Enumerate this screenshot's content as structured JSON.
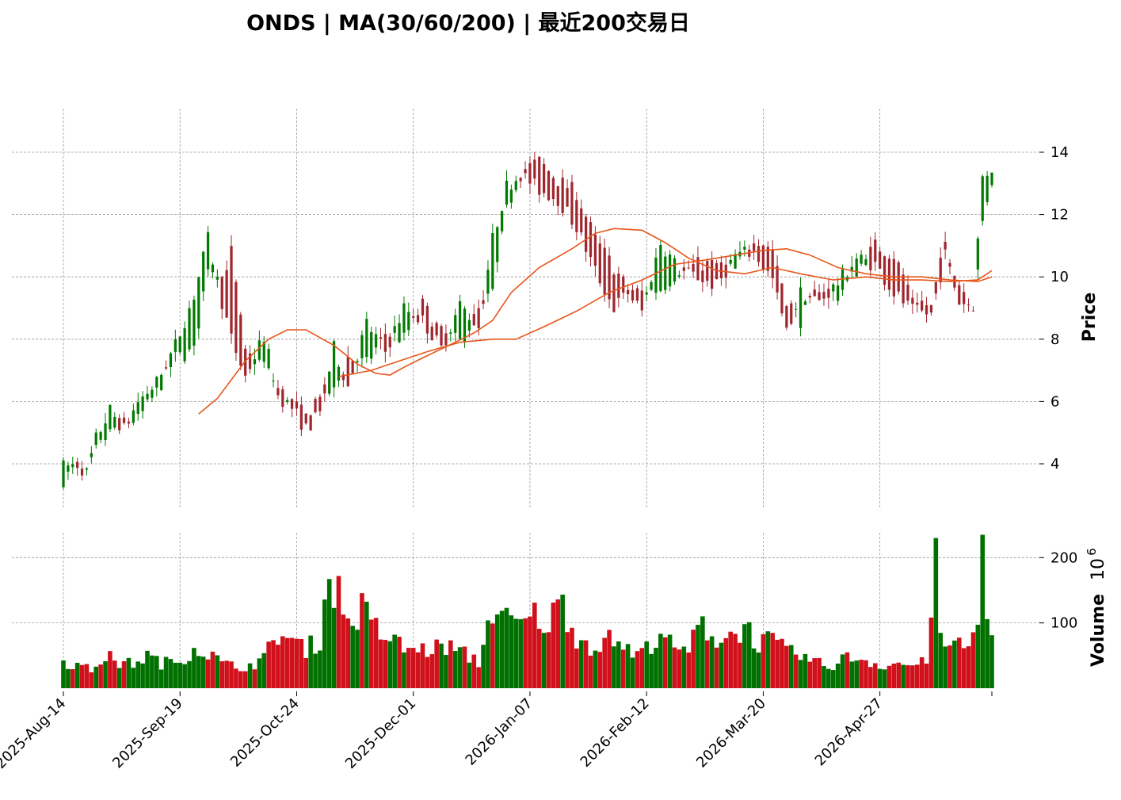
{
  "chart_data": {
    "type": "candlestick",
    "title": "ONDS  |  MA(30/60/200)  |  最近200交易日",
    "price_panel": {
      "ylabel": "Price",
      "yticks": [
        4,
        6,
        8,
        10,
        12,
        14
      ],
      "ylim": [
        2.6,
        15.4
      ],
      "grid": true
    },
    "volume_panel": {
      "ylabel": "Volume",
      "exponent_label": "10",
      "exponent_power": "6",
      "yticks": [
        100,
        200
      ],
      "ylim": [
        0,
        238
      ],
      "grid": true
    },
    "x_tick_labels": [
      "2025-Aug-14",
      "2025-Sep-19",
      "2025-Oct-24",
      "2025-Dec-01",
      "2026-Jan-07",
      "2026-Feb-12",
      "2026-Mar-20",
      "2026-Apr-27"
    ],
    "x_tick_index": [
      0,
      25,
      50,
      75,
      100,
      125,
      150,
      175
    ],
    "colors": {
      "up": "#007a00",
      "down": "#a0262e",
      "up_volume": "#007000",
      "down_volume": "#d0101a",
      "ma": "#e8561a"
    },
    "ohlc_anchors": [
      [
        0,
        3.5,
        3.9
      ],
      [
        3,
        3.9,
        4.0
      ],
      [
        5,
        3.6,
        3.7
      ],
      [
        7,
        4.4,
        4.8
      ],
      [
        10,
        5.0,
        5.7
      ],
      [
        13,
        5.4,
        5.1
      ],
      [
        16,
        5.4,
        6.0
      ],
      [
        20,
        6.3,
        6.6
      ],
      [
        24,
        7.4,
        7.8
      ],
      [
        28,
        7.6,
        9.4
      ],
      [
        31,
        10.4,
        11.2
      ],
      [
        34,
        10.0,
        9.2
      ],
      [
        36,
        10.8,
        8.0
      ],
      [
        39,
        7.5,
        6.8
      ],
      [
        43,
        7.2,
        8.1
      ],
      [
        46,
        6.4,
        6.2
      ],
      [
        49,
        6.0,
        5.8
      ],
      [
        52,
        5.5,
        5.1
      ],
      [
        55,
        6.3,
        5.6
      ],
      [
        58,
        6.3,
        7.7
      ],
      [
        61,
        7.4,
        6.5
      ],
      [
        65,
        7.2,
        8.5
      ],
      [
        69,
        8.2,
        7.6
      ],
      [
        73,
        8.0,
        9.0
      ],
      [
        77,
        9.1,
        8.6
      ],
      [
        81,
        8.2,
        7.7
      ],
      [
        85,
        7.9,
        9.1
      ],
      [
        89,
        8.9,
        8.4
      ],
      [
        92,
        9.5,
        11.2
      ],
      [
        95,
        12.1,
        12.9
      ],
      [
        98,
        13.4,
        13.3
      ],
      [
        102,
        13.7,
        12.8
      ],
      [
        106,
        13.1,
        12.5
      ],
      [
        110,
        12.7,
        11.6
      ],
      [
        114,
        11.2,
        10.2
      ],
      [
        118,
        10.3,
        9.0
      ],
      [
        121,
        9.6,
        9.5
      ],
      [
        124,
        9.5,
        8.9
      ],
      [
        128,
        9.6,
        11.1
      ],
      [
        132,
        10.2,
        10.2
      ],
      [
        136,
        10.4,
        10.0
      ],
      [
        140,
        10.4,
        9.7
      ],
      [
        144,
        10.2,
        10.7
      ],
      [
        148,
        11.3,
        10.8
      ],
      [
        152,
        10.9,
        9.9
      ],
      [
        155,
        9.3,
        8.2
      ],
      [
        158,
        8.6,
        9.5
      ],
      [
        162,
        9.7,
        9.2
      ],
      [
        166,
        9.4,
        9.8
      ],
      [
        170,
        10.2,
        10.6
      ],
      [
        174,
        11.0,
        10.4
      ],
      [
        178,
        10.7,
        9.5
      ],
      [
        182,
        9.4,
        8.9
      ],
      [
        186,
        9.0,
        8.8
      ],
      [
        189,
        11.1,
        10.7
      ],
      [
        192,
        9.8,
        9.2
      ],
      [
        195,
        9.1,
        9.1
      ],
      [
        197,
        11.6,
        13.2
      ],
      [
        199,
        13.0,
        13.5
      ]
    ],
    "volume_anchors": [
      [
        0,
        40
      ],
      [
        3,
        35
      ],
      [
        6,
        28
      ],
      [
        9,
        50
      ],
      [
        12,
        38
      ],
      [
        15,
        38
      ],
      [
        18,
        50
      ],
      [
        21,
        38
      ],
      [
        25,
        42
      ],
      [
        28,
        62
      ],
      [
        31,
        55
      ],
      [
        34,
        38
      ],
      [
        37,
        32
      ],
      [
        40,
        35
      ],
      [
        43,
        45
      ],
      [
        46,
        85
      ],
      [
        49,
        72
      ],
      [
        52,
        60
      ],
      [
        55,
        75
      ],
      [
        57,
        175
      ],
      [
        59,
        145
      ],
      [
        61,
        100
      ],
      [
        64,
        120
      ],
      [
        67,
        90
      ],
      [
        70,
        75
      ],
      [
        73,
        62
      ],
      [
        76,
        58
      ],
      [
        79,
        60
      ],
      [
        82,
        65
      ],
      [
        86,
        52
      ],
      [
        89,
        40
      ],
      [
        92,
        125
      ],
      [
        95,
        102
      ],
      [
        98,
        95
      ],
      [
        101,
        110
      ],
      [
        104,
        100
      ],
      [
        107,
        132
      ],
      [
        110,
        80
      ],
      [
        113,
        65
      ],
      [
        116,
        72
      ],
      [
        119,
        75
      ],
      [
        122,
        50
      ],
      [
        125,
        60
      ],
      [
        128,
        90
      ],
      [
        131,
        55
      ],
      [
        134,
        60
      ],
      [
        137,
        100
      ],
      [
        140,
        75
      ],
      [
        143,
        80
      ],
      [
        146,
        95
      ],
      [
        149,
        70
      ],
      [
        152,
        72
      ],
      [
        155,
        55
      ],
      [
        158,
        50
      ],
      [
        161,
        40
      ],
      [
        164,
        32
      ],
      [
        167,
        45
      ],
      [
        170,
        48
      ],
      [
        173,
        40
      ],
      [
        176,
        35
      ],
      [
        179,
        38
      ],
      [
        182,
        35
      ],
      [
        185,
        40
      ],
      [
        187,
        230
      ],
      [
        188,
        95
      ],
      [
        190,
        55
      ],
      [
        193,
        70
      ],
      [
        196,
        85
      ],
      [
        197,
        235
      ],
      [
        198,
        135
      ],
      [
        199,
        75
      ]
    ],
    "ma_series": [
      {
        "name": "MA30",
        "points": [
          [
            29,
            5.6
          ],
          [
            33,
            6.1
          ],
          [
            39,
            7.3
          ],
          [
            44,
            8.0
          ],
          [
            48,
            8.3
          ],
          [
            52,
            8.3
          ],
          [
            58,
            7.8
          ],
          [
            63,
            7.2
          ],
          [
            67,
            6.9
          ],
          [
            70,
            6.85
          ],
          [
            73,
            7.1
          ],
          [
            77,
            7.4
          ],
          [
            84,
            7.9
          ],
          [
            88,
            8.2
          ],
          [
            92,
            8.6
          ],
          [
            96,
            9.5
          ],
          [
            102,
            10.3
          ],
          [
            109,
            10.9
          ],
          [
            114,
            11.4
          ],
          [
            118,
            11.55
          ],
          [
            124,
            11.5
          ],
          [
            129,
            11.1
          ],
          [
            134,
            10.6
          ],
          [
            140,
            10.2
          ],
          [
            146,
            10.1
          ],
          [
            152,
            10.3
          ],
          [
            158,
            10.1
          ],
          [
            165,
            9.9
          ],
          [
            172,
            10.0
          ],
          [
            178,
            9.9
          ],
          [
            184,
            9.9
          ],
          [
            190,
            9.85
          ],
          [
            196,
            9.9
          ],
          [
            199,
            10.2
          ]
        ]
      },
      {
        "name": "MA60",
        "points": [
          [
            59,
            6.8
          ],
          [
            66,
            7.0
          ],
          [
            72,
            7.3
          ],
          [
            78,
            7.6
          ],
          [
            85,
            7.9
          ],
          [
            92,
            8.0
          ],
          [
            97,
            8.0
          ],
          [
            103,
            8.4
          ],
          [
            110,
            8.9
          ],
          [
            117,
            9.5
          ],
          [
            124,
            9.9
          ],
          [
            131,
            10.4
          ],
          [
            138,
            10.55
          ],
          [
            144,
            10.7
          ],
          [
            150,
            10.85
          ],
          [
            155,
            10.9
          ],
          [
            160,
            10.7
          ],
          [
            166,
            10.3
          ],
          [
            172,
            10.1
          ],
          [
            178,
            10.0
          ],
          [
            184,
            10.0
          ],
          [
            190,
            9.9
          ],
          [
            196,
            9.85
          ],
          [
            199,
            10.0
          ]
        ]
      }
    ]
  }
}
